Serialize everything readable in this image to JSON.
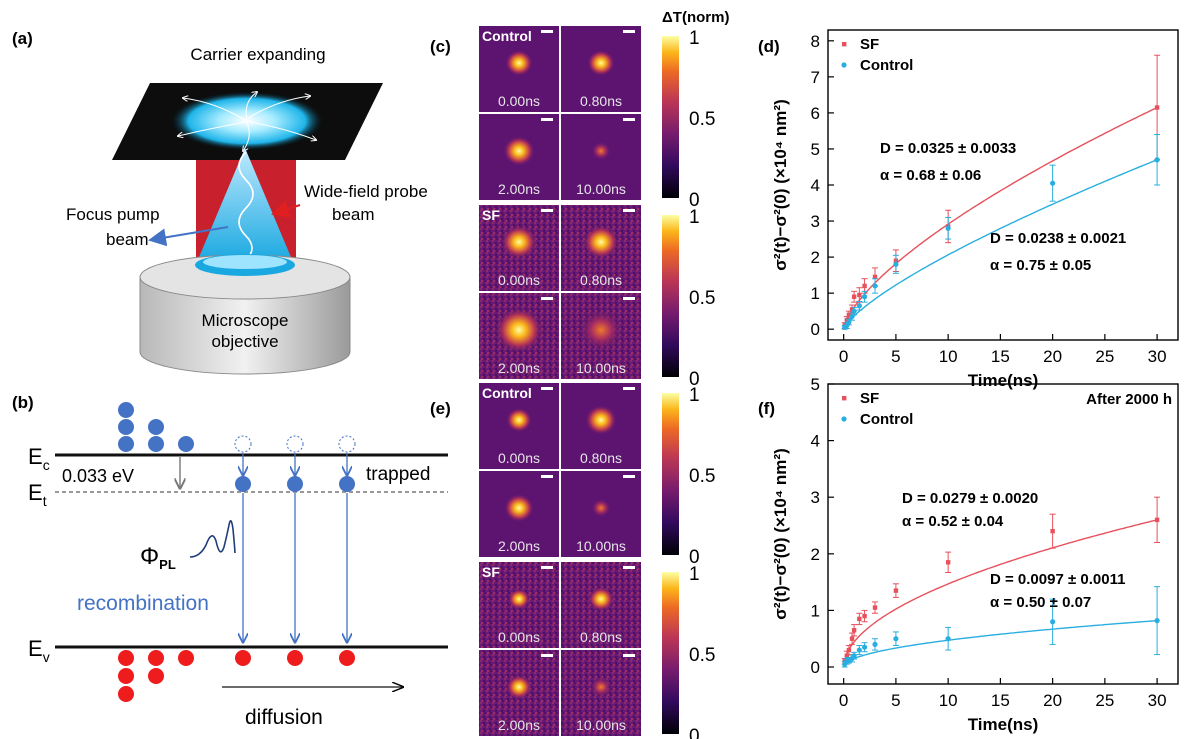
{
  "panels": {
    "a": {
      "label": "(a)",
      "top_text": "Carrier expanding",
      "probe_text_1": "Wide-field probe",
      "probe_text_2": "beam",
      "pump_text_1": "Focus pump",
      "pump_text_2": "beam",
      "objective_1": "Microscope",
      "objective_2": "objective"
    },
    "b": {
      "label": "(b)",
      "ec": "E",
      "ec_sub": "c",
      "et": "E",
      "et_sub": "t",
      "ev": "E",
      "ev_sub": "v",
      "gap": "0.033 eV",
      "trapped": "trapped",
      "phi": "Φ",
      "phi_sub": "PL",
      "recombination": "recombination",
      "diffusion": "diffusion"
    },
    "c": {
      "label": "(c)",
      "colorbar_title": "ΔT(norm)",
      "groups": [
        {
          "name": "Control",
          "times": [
            "0.00ns",
            "0.80ns",
            "2.00ns",
            "10.00ns"
          ]
        },
        {
          "name": "SF",
          "times": [
            "0.00ns",
            "0.80ns",
            "2.00ns",
            "10.00ns"
          ]
        }
      ],
      "colorbar_ticks": [
        "1",
        "0.5",
        "0"
      ]
    },
    "e": {
      "label": "(e)",
      "groups": [
        {
          "name": "Control",
          "times": [
            "0.00ns",
            "0.80ns",
            "2.00ns",
            "10.00ns"
          ]
        },
        {
          "name": "SF",
          "times": [
            "0.00ns",
            "0.80ns",
            "2.00ns",
            "10.00ns"
          ]
        }
      ],
      "colorbar_ticks": [
        "1",
        "0.5",
        "0"
      ]
    },
    "d": {
      "label": "(d)",
      "fit_sf_D": "D = 0.0325 ± 0.0033",
      "fit_sf_alpha": "α = 0.68 ± 0.06",
      "fit_ctrl_D": "D = 0.0238 ± 0.0021",
      "fit_ctrl_alpha": "α = 0.75 ± 0.05"
    },
    "f": {
      "label": "(f)",
      "tag": "After 2000 h",
      "fit_sf_D": "D = 0.0279 ± 0.0020",
      "fit_sf_alpha": "α = 0.52 ± 0.04",
      "fit_ctrl_D": "D = 0.0097 ± 0.0011",
      "fit_ctrl_alpha": "α = 0.50 ± 0.07"
    }
  },
  "colors": {
    "sf": "#e8505b",
    "control": "#29aee0",
    "level": "#111111",
    "arrow_blue": "#4472c4"
  },
  "chart_data": [
    {
      "type": "scatter",
      "panel": "d",
      "xlabel": "Time(ns)",
      "ylabel": "σ²(t)−σ²(0) (×10⁴ nm²)",
      "xlim": [
        -1.5,
        32
      ],
      "ylim": [
        -0.3,
        8.3
      ],
      "xticks": [
        0,
        5,
        10,
        15,
        20,
        25,
        30
      ],
      "yticks": [
        0,
        1,
        2,
        3,
        4,
        5,
        6,
        7,
        8
      ],
      "legend_position": "top-left",
      "grid": false,
      "series": [
        {
          "name": "SF",
          "color": "#e8505b",
          "x": [
            0.1,
            0.3,
            0.5,
            0.8,
            1.0,
            1.5,
            2.0,
            3.0,
            5.0,
            10.0,
            30.0
          ],
          "y": [
            0.1,
            0.25,
            0.4,
            0.55,
            0.9,
            0.95,
            1.2,
            1.45,
            1.9,
            2.85,
            6.15
          ],
          "err": [
            0.08,
            0.1,
            0.1,
            0.12,
            0.15,
            0.2,
            0.2,
            0.25,
            0.3,
            0.45,
            1.45
          ],
          "fit": {
            "D": 0.0325,
            "alpha": 0.68
          }
        },
        {
          "name": "Control",
          "color": "#29aee0",
          "x": [
            0.1,
            0.3,
            0.5,
            0.8,
            1.0,
            1.5,
            2.0,
            3.0,
            5.0,
            10.0,
            20.0,
            30.0
          ],
          "y": [
            0.05,
            0.1,
            0.2,
            0.35,
            0.5,
            0.65,
            0.9,
            1.2,
            1.8,
            2.8,
            4.05,
            4.7
          ],
          "err": [
            0.05,
            0.08,
            0.08,
            0.1,
            0.1,
            0.12,
            0.15,
            0.2,
            0.25,
            0.3,
            0.5,
            0.7
          ],
          "fit": {
            "D": 0.0238,
            "alpha": 0.75
          }
        }
      ]
    },
    {
      "type": "scatter",
      "panel": "f",
      "xlabel": "Time(ns)",
      "ylabel": "σ²(t)−σ²(0) (×10⁴ nm²)",
      "xlim": [
        -1.5,
        32
      ],
      "ylim": [
        -0.3,
        5.0
      ],
      "xticks": [
        0,
        5,
        10,
        15,
        20,
        25,
        30
      ],
      "yticks": [
        0,
        1,
        2,
        3,
        4,
        5
      ],
      "legend_position": "top-left",
      "grid": false,
      "series": [
        {
          "name": "SF",
          "color": "#e8505b",
          "x": [
            0.1,
            0.3,
            0.5,
            0.8,
            1.0,
            1.5,
            2.0,
            3.0,
            5.0,
            10.0,
            20.0,
            30.0
          ],
          "y": [
            0.1,
            0.2,
            0.3,
            0.5,
            0.65,
            0.85,
            0.9,
            1.05,
            1.35,
            1.85,
            2.4,
            2.6
          ],
          "err": [
            0.05,
            0.08,
            0.08,
            0.1,
            0.1,
            0.1,
            0.1,
            0.1,
            0.12,
            0.18,
            0.3,
            0.4
          ],
          "fit": {
            "D": 0.0279,
            "alpha": 0.52
          }
        },
        {
          "name": "Control",
          "color": "#29aee0",
          "x": [
            0.1,
            0.3,
            0.5,
            0.8,
            1.0,
            1.5,
            2.0,
            3.0,
            5.0,
            10.0,
            20.0,
            30.0
          ],
          "y": [
            0.05,
            0.1,
            0.12,
            0.15,
            0.2,
            0.3,
            0.35,
            0.4,
            0.5,
            0.5,
            0.8,
            0.82
          ],
          "err": [
            0.05,
            0.05,
            0.05,
            0.06,
            0.06,
            0.08,
            0.08,
            0.1,
            0.12,
            0.2,
            0.4,
            0.6
          ],
          "fit": {
            "D": 0.0097,
            "alpha": 0.5
          }
        }
      ]
    }
  ]
}
